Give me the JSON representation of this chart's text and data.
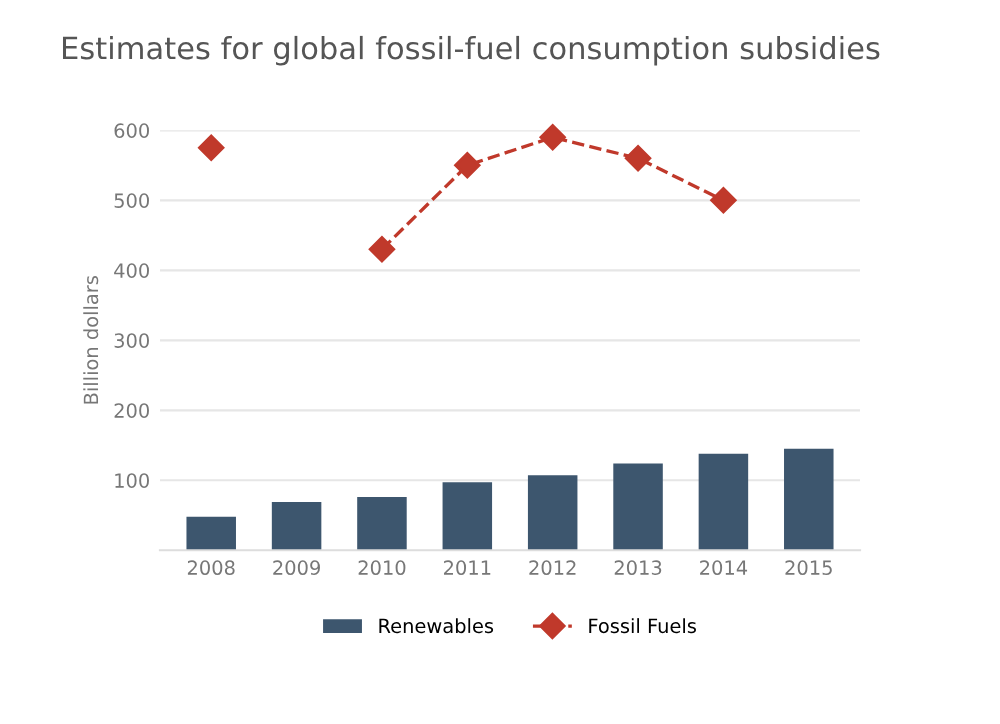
{
  "chart_data": {
    "type": "bar",
    "title": "Estimates for global fossil-fuel consumption subsidies",
    "ylabel": "Billion dollars",
    "categories": [
      "2008",
      "2009",
      "2010",
      "2011",
      "2012",
      "2013",
      "2014",
      "2015"
    ],
    "series": [
      {
        "name": "Renewables",
        "color": "#3d566e",
        "values": [
          48,
          69,
          76,
          97,
          107,
          124,
          138,
          145
        ]
      },
      {
        "name": "Fossil Fuels",
        "type": "line",
        "color": "#c0392b",
        "marker": "diamond",
        "line_style": "dashed",
        "values": [
          575,
          null,
          430,
          550,
          590,
          560,
          500,
          null
        ]
      }
    ],
    "ylim": [
      0,
      600
    ],
    "yticks": [
      100,
      200,
      300,
      400,
      500,
      600
    ],
    "grid": "y",
    "legend": "bottom"
  }
}
